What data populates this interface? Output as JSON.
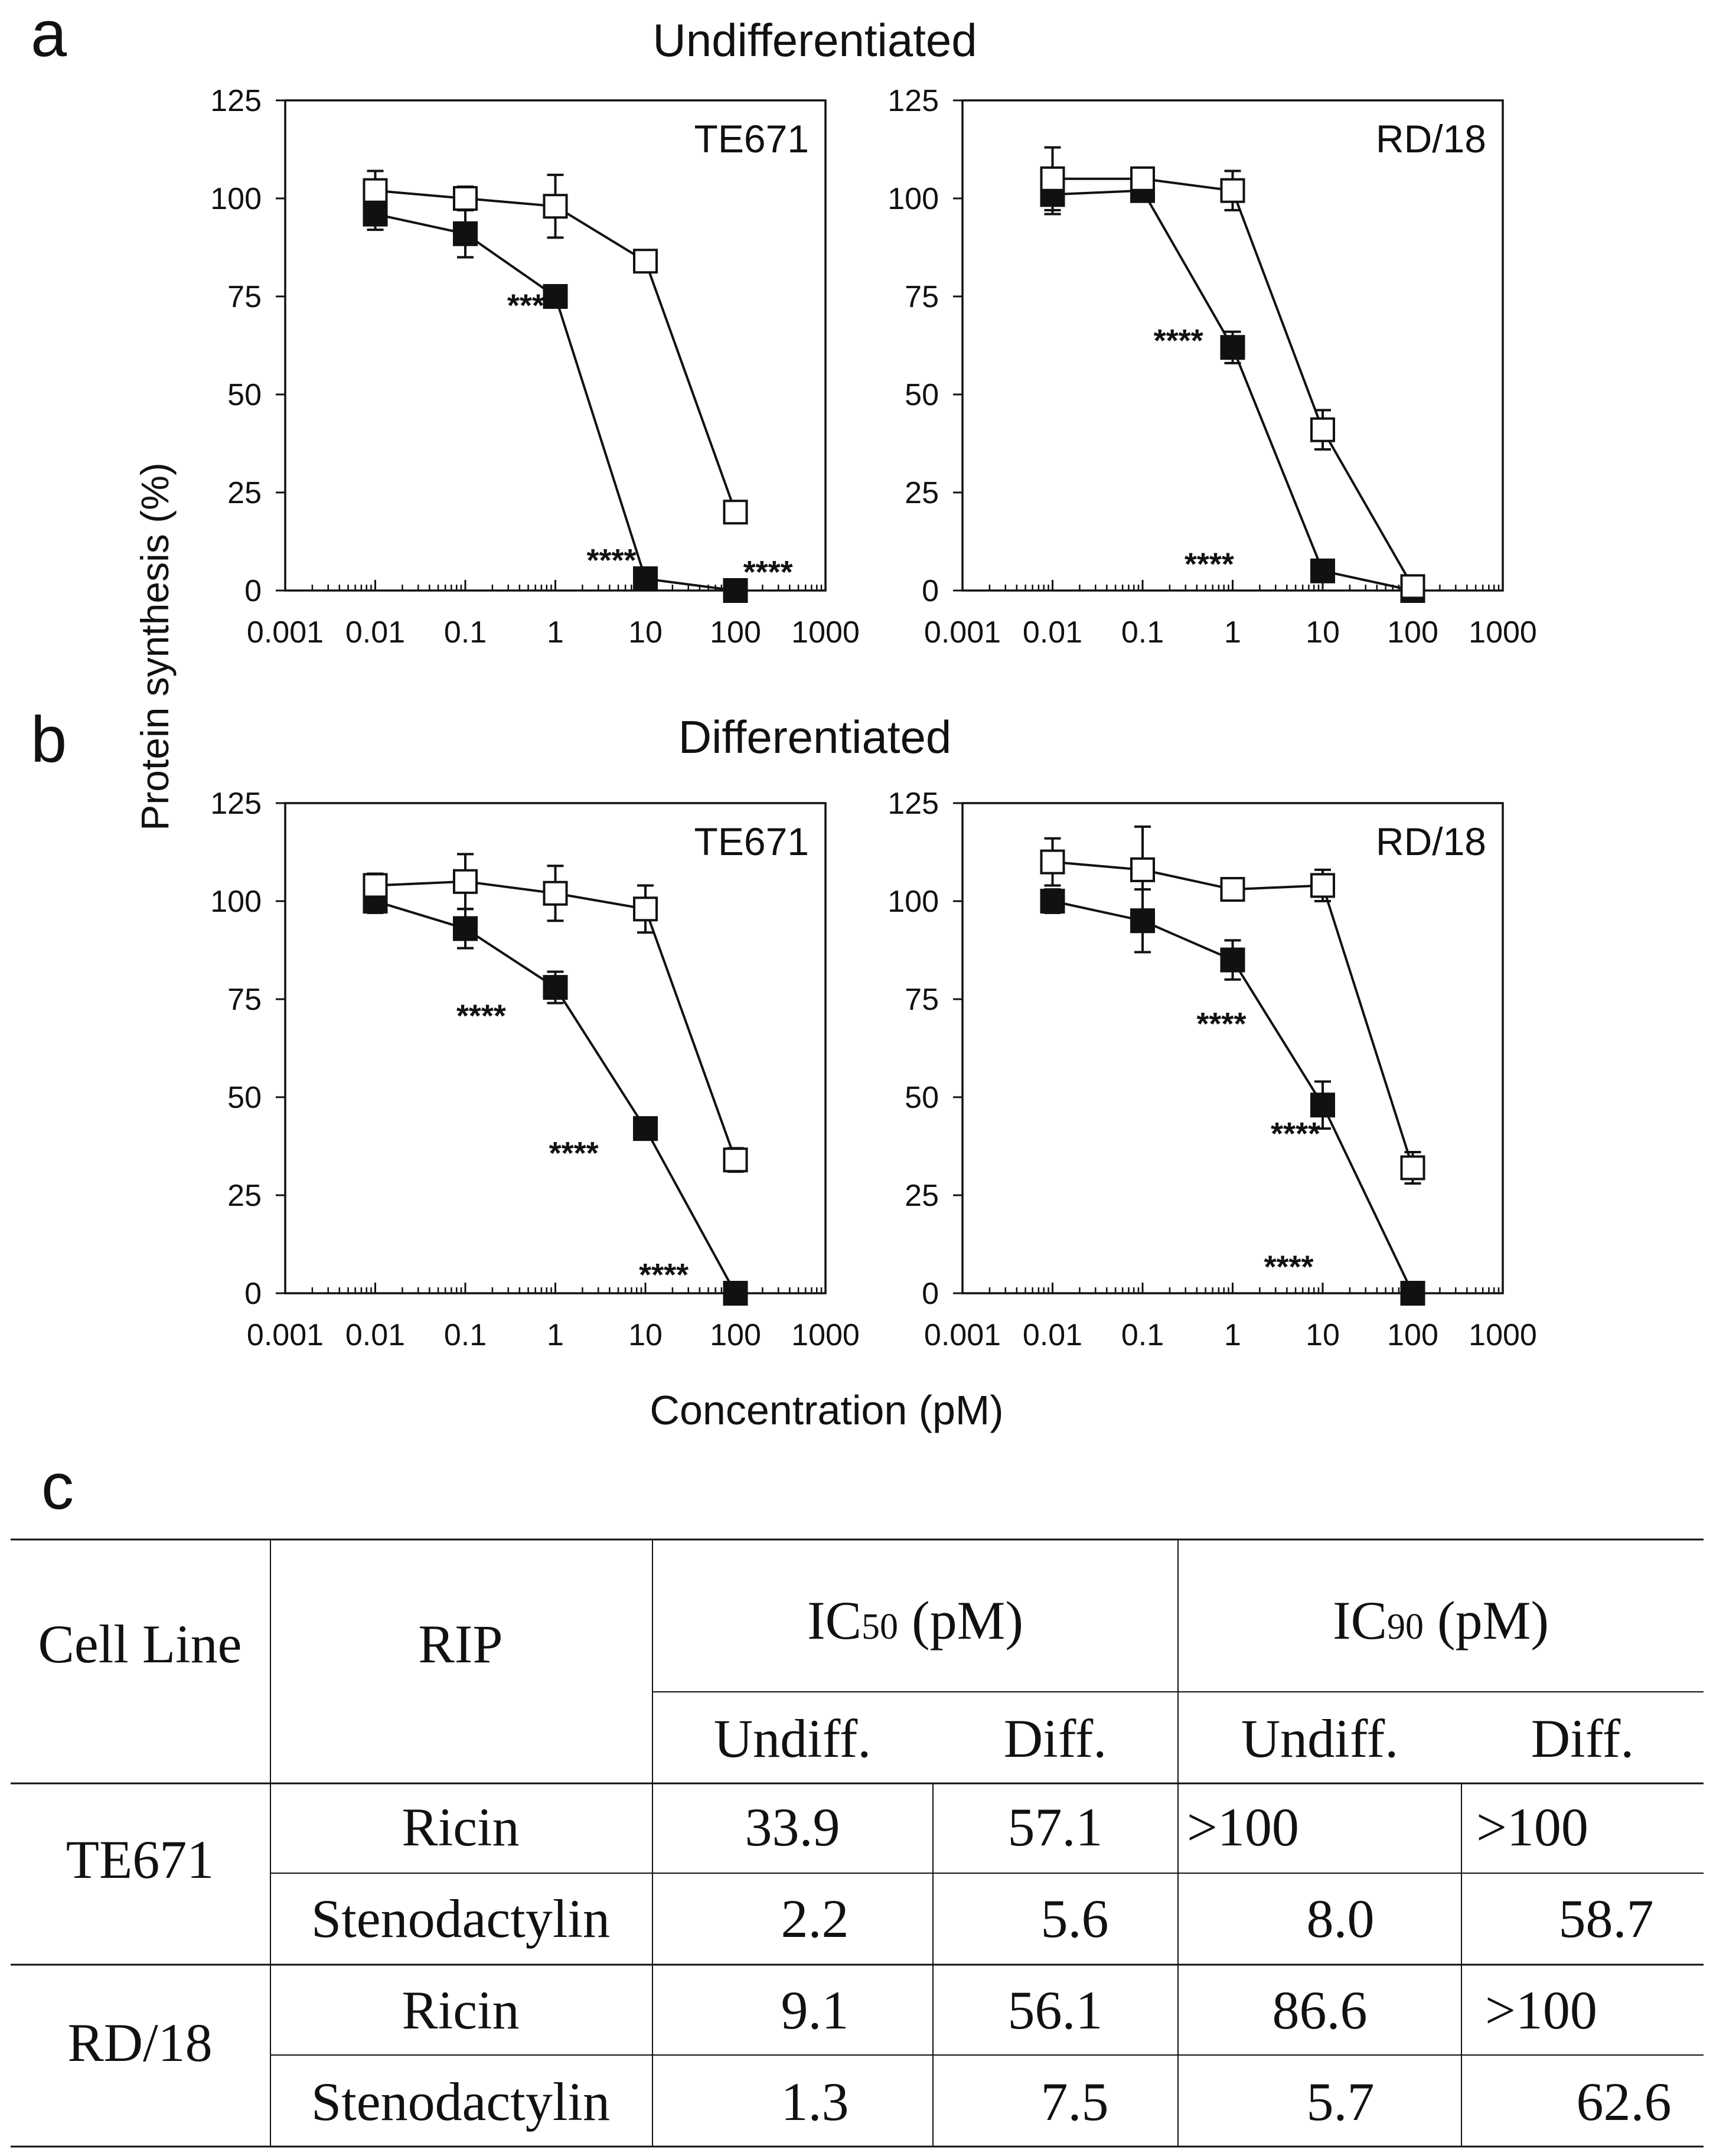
{
  "panel_labels": {
    "a": "a",
    "b": "b",
    "c": "c"
  },
  "sections": {
    "undifferentiated": "Undifferentiated",
    "differentiated": "Differentiated"
  },
  "shared_ylabel": "Protein synthesis (%)",
  "shared_xlabel": "Concentration (pM)",
  "colors": {
    "ink": "#111111",
    "open_marker_fill": "#ffffff",
    "filled_marker_fill": "#111111"
  },
  "chart_data": [
    {
      "id": "a_te671",
      "type": "line",
      "title": "TE671",
      "xscale": "log",
      "x_tick_labels": [
        "0.001",
        "0.01",
        "0.1",
        "1",
        "10",
        "100",
        "1000"
      ],
      "xlim": [
        0.001,
        1000
      ],
      "ylim": [
        0,
        125
      ],
      "y_tick_labels": [
        "0",
        "25",
        "50",
        "75",
        "100",
        "125"
      ],
      "series": [
        {
          "name": "open squares",
          "marker": "open-square",
          "x": [
            0.01,
            0.1,
            1,
            10,
            100
          ],
          "y": [
            102,
            100,
            98,
            84,
            20
          ],
          "err": [
            5,
            3,
            8,
            2,
            2
          ]
        },
        {
          "name": "filled squares",
          "marker": "filled-square",
          "x": [
            0.01,
            0.1,
            1,
            10,
            100
          ],
          "y": [
            96,
            91,
            75,
            3,
            0
          ],
          "err": [
            4,
            6,
            2,
            1,
            0
          ]
        }
      ],
      "annotations": [
        {
          "text": "****",
          "x": 0.55,
          "y": 73
        },
        {
          "text": "****",
          "x": 4.2,
          "y": 8
        },
        {
          "text": "****",
          "x": 230,
          "y": 5
        }
      ]
    },
    {
      "id": "a_rd18",
      "type": "line",
      "title": "RD/18",
      "xscale": "log",
      "x_tick_labels": [
        "0.001",
        "0.01",
        "0.1",
        "1",
        "10",
        "100",
        "1000"
      ],
      "xlim": [
        0.001,
        1000
      ],
      "ylim": [
        0,
        125
      ],
      "y_tick_labels": [
        "0",
        "25",
        "50",
        "75",
        "100",
        "125"
      ],
      "series": [
        {
          "name": "open squares",
          "marker": "open-square",
          "x": [
            0.01,
            0.1,
            1,
            10,
            100
          ],
          "y": [
            105,
            105,
            102,
            41,
            1
          ],
          "err": [
            8,
            2,
            5,
            5,
            1
          ]
        },
        {
          "name": "filled squares",
          "marker": "filled-square",
          "x": [
            0.01,
            0.1,
            1,
            10,
            100
          ],
          "y": [
            101,
            102,
            62,
            5,
            0
          ],
          "err": [
            5,
            2,
            4,
            1,
            0
          ]
        }
      ],
      "annotations": [
        {
          "text": "****",
          "x": 0.25,
          "y": 64
        },
        {
          "text": "****",
          "x": 0.55,
          "y": 7
        }
      ]
    },
    {
      "id": "b_te671",
      "type": "line",
      "title": "TE671",
      "xscale": "log",
      "x_tick_labels": [
        "0.001",
        "0.01",
        "0.1",
        "1",
        "10",
        "100",
        "1000"
      ],
      "xlim": [
        0.001,
        1000
      ],
      "ylim": [
        0,
        125
      ],
      "y_tick_labels": [
        "0",
        "25",
        "50",
        "75",
        "100",
        "125"
      ],
      "series": [
        {
          "name": "open squares",
          "marker": "open-square",
          "x": [
            0.01,
            0.1,
            1,
            10,
            100
          ],
          "y": [
            104,
            105,
            102,
            98,
            34
          ],
          "err": [
            3,
            7,
            7,
            6,
            3
          ]
        },
        {
          "name": "filled squares",
          "marker": "filled-square",
          "x": [
            0.01,
            0.1,
            1,
            10,
            100
          ],
          "y": [
            100,
            93,
            78,
            42,
            0
          ],
          "err": [
            3,
            5,
            4,
            1,
            0
          ]
        }
      ],
      "annotations": [
        {
          "text": "****",
          "x": 0.15,
          "y": 71
        },
        {
          "text": "****",
          "x": 1.6,
          "y": 36
        },
        {
          "text": "****",
          "x": 16,
          "y": 5
        }
      ]
    },
    {
      "id": "b_rd18",
      "type": "line",
      "title": "RD/18",
      "xscale": "log",
      "x_tick_labels": [
        "0.001",
        "0.01",
        "0.1",
        "1",
        "10",
        "100",
        "1000"
      ],
      "xlim": [
        0.001,
        1000
      ],
      "ylim": [
        0,
        125
      ],
      "y_tick_labels": [
        "0",
        "25",
        "50",
        "75",
        "100",
        "125"
      ],
      "series": [
        {
          "name": "open squares",
          "marker": "open-square",
          "x": [
            0.01,
            0.1,
            1,
            10,
            100
          ],
          "y": [
            110,
            108,
            103,
            104,
            32
          ],
          "err": [
            6,
            11,
            2,
            4,
            4
          ]
        },
        {
          "name": "filled squares",
          "marker": "filled-square",
          "x": [
            0.01,
            0.1,
            1,
            10,
            100
          ],
          "y": [
            100,
            95,
            85,
            48,
            0
          ],
          "err": [
            3,
            8,
            5,
            6,
            0
          ]
        }
      ],
      "annotations": [
        {
          "text": "****",
          "x": 0.75,
          "y": 69
        },
        {
          "text": "****",
          "x": 5.0,
          "y": 41
        },
        {
          "text": "****",
          "x": 4.2,
          "y": 7
        }
      ]
    }
  ],
  "table": {
    "headers": {
      "cell_line": "Cell Line",
      "rip": "RIP",
      "ic50": {
        "pre": "IC",
        "sub": "50",
        "post": " (pM)"
      },
      "ic90": {
        "pre": "IC",
        "sub": "90",
        "post": " (pM)"
      },
      "undiff": "Undiff.",
      "diff": "Diff."
    },
    "groups": [
      {
        "cell_line": "TE671",
        "rows": [
          {
            "rip": "Ricin",
            "ic50_undiff": "33.9",
            "ic50_diff": "57.1",
            "ic90_undiff": ">100",
            "ic90_diff": ">100"
          },
          {
            "rip": "Stenodactylin",
            "ic50_undiff": "2.2",
            "ic50_diff": "5.6",
            "ic90_undiff": "8.0",
            "ic90_diff": "58.7"
          }
        ]
      },
      {
        "cell_line": "RD/18",
        "rows": [
          {
            "rip": "Ricin",
            "ic50_undiff": "9.1",
            "ic50_diff": "56.1",
            "ic90_undiff": "86.6",
            "ic90_diff": ">100"
          },
          {
            "rip": "Stenodactylin",
            "ic50_undiff": "1.3",
            "ic50_diff": "7.5",
            "ic90_undiff": "5.7",
            "ic90_diff": "62.6"
          }
        ]
      }
    ]
  }
}
